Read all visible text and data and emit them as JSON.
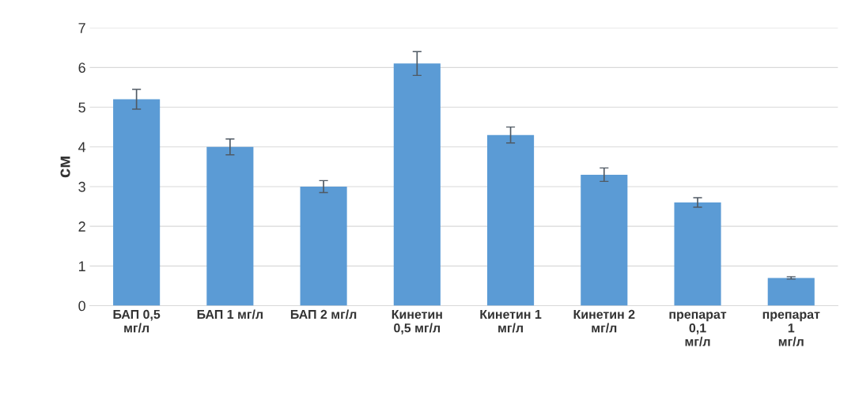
{
  "chart_data": {
    "type": "bar",
    "ylabel": "см",
    "categories": [
      "БАП 0,5\nмг/л",
      "БАП 1 мг/л",
      "БАП 2 мг/л",
      "Кинетин\n0,5 мг/л",
      "Кинетин 1\nмг/л",
      "Кинетин 2\nмг/л",
      "препарат\n0,1\nмг/л",
      "препарат\n1\nмг/л"
    ],
    "values": [
      5.2,
      4.0,
      3.0,
      6.1,
      4.3,
      3.3,
      2.6,
      0.7
    ],
    "errors": [
      0.25,
      0.2,
      0.15,
      0.3,
      0.2,
      0.17,
      0.12,
      0.03
    ],
    "color": "#5b9bd5",
    "ylim": [
      0,
      7
    ],
    "yticks": [
      0,
      1,
      2,
      3,
      4,
      5,
      6,
      7
    ],
    "grid": "y"
  }
}
